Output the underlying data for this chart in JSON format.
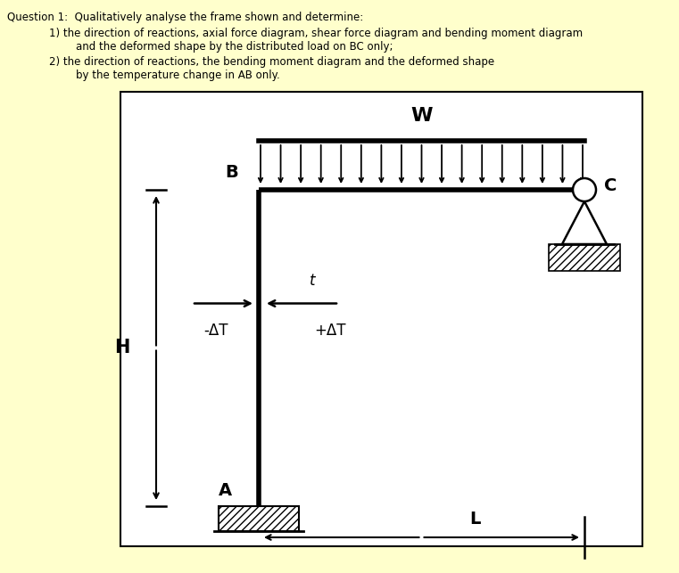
{
  "bg_outer": "#ffffcc",
  "bg_inner": "#ffffff",
  "title_line1": "Question 1:  Qualitatively analyse the frame shown and determine:",
  "title_line2": "1) the direction of reactions, axial force diagram, shear force diagram and bending moment diagram",
  "title_line3": "        and the deformed shape by the distributed load on BC only;",
  "title_line4": "2) the direction of reactions, the bending moment diagram and the deformed shape",
  "title_line5": "        by the temperature change in AB only.",
  "label_W": "W",
  "label_B": "B",
  "label_C": "C",
  "label_A": "A",
  "label_H": "H",
  "label_L": "L",
  "label_t": "t",
  "label_neg_dT": "-ΔT",
  "label_pos_dT": "+ΔT",
  "bg_color": "#ffffcc",
  "white_color": "#ffffff",
  "black": "#000000"
}
